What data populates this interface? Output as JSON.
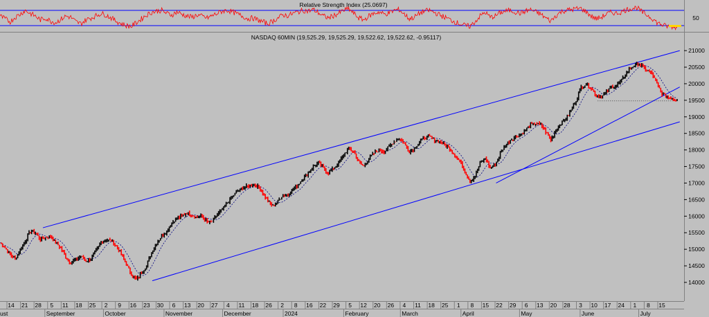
{
  "rsi_panel": {
    "title": "Relative Strength Index (25.0697)",
    "value": 25.0697,
    "levels": [
      70,
      30
    ],
    "y_tick_labels": [
      "50"
    ]
  },
  "price_panel": {
    "title": "NASDAQ 60MIN (19,525.29, 19,525.29, 19,522.62, 19,522.62, -0.95117)"
  },
  "colors": {
    "background": "#c0c0c0",
    "rsi_line": "#ff0000",
    "level_line": "#0000ff",
    "trendline": "#0000ff",
    "moving_average": "#000080",
    "up_bar": "#000000",
    "down_bar": "#ff0000",
    "current_price": "#ffd700"
  },
  "chart_data": {
    "type": "line",
    "ylim": [
      13850,
      21150
    ],
    "y_ticks": [
      14000,
      14500,
      15000,
      15500,
      16000,
      16500,
      17000,
      17500,
      18000,
      18500,
      19000,
      19500,
      20000,
      20500,
      21000
    ],
    "x_ticks": [
      "14",
      "21",
      "28",
      "5",
      "11",
      "18",
      "25",
      "2",
      "9",
      "16",
      "23",
      "30",
      "6",
      "13",
      "20",
      "27",
      "4",
      "11",
      "18",
      "26",
      "2",
      "8",
      "16",
      "22",
      "29",
      "5",
      "12",
      "20",
      "26",
      "4",
      "11",
      "18",
      "25",
      "1",
      "8",
      "15",
      "22",
      "29",
      "6",
      "13",
      "20",
      "28",
      "3",
      "10",
      "17",
      "24",
      "1",
      "8",
      "15"
    ],
    "month_labels": [
      "ust",
      "September",
      "October",
      "November",
      "December",
      "2024",
      "February",
      "March",
      "April",
      "May",
      "June",
      "July"
    ],
    "series": [
      {
        "values": [
          15200,
          15050,
          14850,
          14700,
          15000,
          15250,
          15550,
          15500,
          15300,
          15350,
          15400,
          15200,
          15050,
          14750,
          14600,
          14700,
          14800,
          14650,
          14700,
          14950,
          15200,
          15300,
          15250,
          15100,
          14850,
          14550,
          14250,
          14080,
          14300,
          14500,
          14900,
          15200,
          15400,
          15550,
          15800,
          15950,
          16000,
          16100,
          16050,
          15950,
          16000,
          15800,
          15850,
          16050,
          16200,
          16400,
          16600,
          16750,
          16850,
          16900,
          16950,
          16900,
          16700,
          16450,
          16300,
          16450,
          16650,
          16650,
          16800,
          16950,
          17150,
          17300,
          17500,
          17600,
          17450,
          17300,
          17450,
          17600,
          17850,
          18050,
          17950,
          17650,
          17500,
          17750,
          17900,
          18000,
          17950,
          18100,
          18250,
          18350,
          18200,
          17950,
          18050,
          18250,
          18350,
          18400,
          18300,
          18250,
          18150,
          18050,
          17850,
          17650,
          17350,
          17050,
          17200,
          17600,
          17750,
          17450,
          17550,
          17900,
          18150,
          18300,
          18400,
          18450,
          18600,
          18750,
          18800,
          18750,
          18550,
          18300,
          18600,
          18800,
          18950,
          19200,
          19500,
          19900,
          20000,
          19850,
          19650,
          19600,
          19750,
          19900,
          19950,
          20100,
          20350,
          20500,
          20600,
          20550,
          20400,
          20300,
          20000,
          19700,
          19600,
          19550,
          19523
        ]
      },
      {
        "name": "RSI",
        "values": [
          55,
          48,
          40,
          52,
          60,
          70,
          62,
          55,
          45,
          50,
          42,
          38,
          46,
          55,
          52,
          40,
          35,
          45,
          50,
          56,
          62,
          58,
          50,
          42,
          35,
          30,
          28,
          38,
          48,
          58,
          65,
          68,
          70,
          62,
          58,
          66,
          60,
          55,
          52,
          58,
          54,
          50,
          56,
          62,
          68,
          70,
          66,
          60,
          55,
          48,
          50,
          45,
          40,
          35,
          42,
          50,
          58,
          56,
          62,
          66,
          70,
          68,
          72,
          64,
          55,
          50,
          56,
          62,
          70,
          74,
          62,
          50,
          45,
          55,
          62,
          66,
          60,
          63,
          70,
          72,
          60,
          48,
          52,
          62,
          68,
          70,
          64,
          58,
          52,
          46,
          40,
          35,
          30,
          28,
          40,
          55,
          65,
          52,
          55,
          64,
          68,
          70,
          66,
          62,
          68,
          72,
          66,
          60,
          50,
          42,
          56,
          66,
          70,
          72,
          74,
          75,
          66,
          55,
          48,
          52,
          60,
          65,
          62,
          66,
          72,
          75,
          78,
          66,
          58,
          50,
          38,
          32,
          28,
          27,
          25
        ]
      }
    ],
    "trendlines": [
      {
        "start": {
          "date": "2023-08-31",
          "value": 15650
        },
        "end": {
          "date": "2024-07-22",
          "value": 21000
        }
      },
      {
        "start": {
          "date": "2023-10-26",
          "value": 14050
        },
        "end": {
          "date": "2024-07-22",
          "value": 18850
        }
      },
      {
        "start": {
          "date": "2024-04-19",
          "value": 17000
        },
        "end": {
          "date": "2024-07-22",
          "value": 19900
        }
      }
    ],
    "horizontal_line": {
      "start_date": "2024-06-10",
      "end_date": "2024-07-19",
      "value": 19480
    }
  }
}
